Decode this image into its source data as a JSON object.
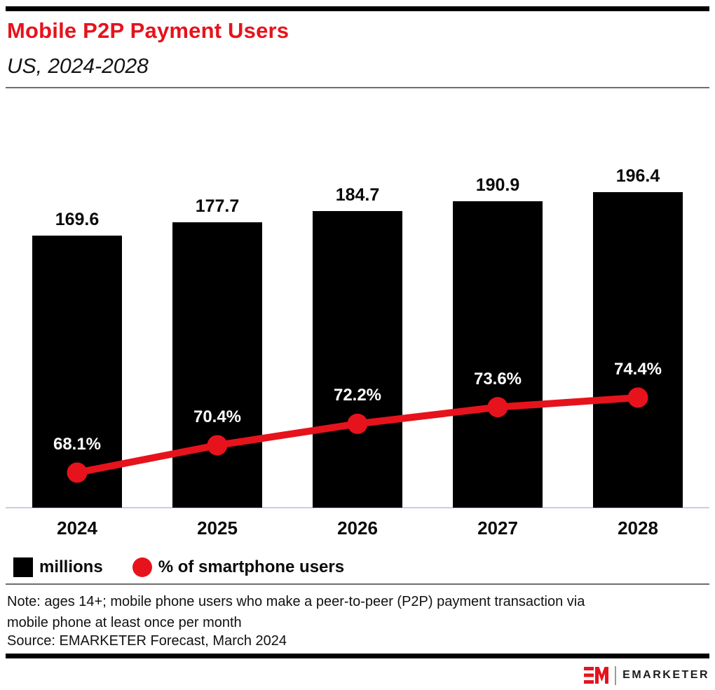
{
  "header": {
    "title": "Mobile P2P Payment Users",
    "subtitle": "US, 2024-2028"
  },
  "chart_data": {
    "type": "bar",
    "combo": "bar+line",
    "title": "Mobile P2P Payment Users",
    "subtitle": "US, 2024-2028",
    "categories": [
      "2024",
      "2025",
      "2026",
      "2027",
      "2028"
    ],
    "series": [
      {
        "name": "millions",
        "type": "bar",
        "color": "#000000",
        "values": [
          169.6,
          177.7,
          184.7,
          190.9,
          196.4
        ]
      },
      {
        "name": "% of smartphone users",
        "type": "line",
        "color": "#e6131c",
        "values": [
          68.1,
          70.4,
          72.2,
          73.6,
          74.4
        ],
        "value_suffix": "%"
      }
    ],
    "xlabel": "",
    "ylabel": "",
    "legend_position": "bottom",
    "grid": false,
    "data_labels": true
  },
  "legend": {
    "items": [
      {
        "label": "millions",
        "swatch": "black-square"
      },
      {
        "label": "% of smartphone users",
        "swatch": "red-circle"
      }
    ]
  },
  "footnotes": {
    "note": "Note: ages 14+; mobile phone users who make a peer-to-peer (P2P) payment transaction via mobile phone at least once per month",
    "source": "Source: EMARKETER Forecast, March 2024"
  },
  "footer": {
    "brand": "EMARKETER"
  },
  "colors": {
    "accent_red": "#e6131c",
    "bar_black": "#000000",
    "axis_line": "#c9cfe0",
    "divider_gray": "#6e6e6e"
  }
}
